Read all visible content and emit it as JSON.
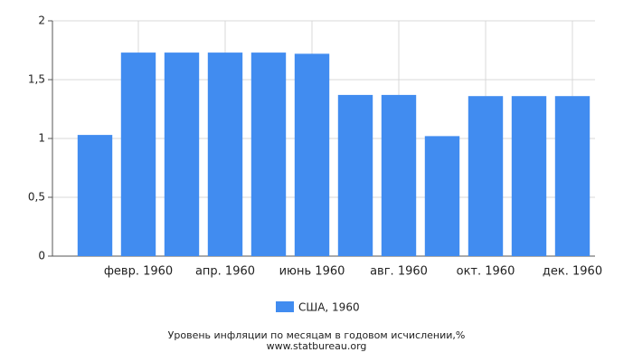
{
  "chart_data": {
    "type": "bar",
    "title": "Уровень инфляции по месяцам в годовом исчислении,%",
    "source": "www.statbureau.org",
    "categories": [
      null,
      "февр. 1960",
      null,
      "апр. 1960",
      null,
      "июнь 1960",
      null,
      "авг. 1960",
      null,
      "окт. 1960",
      null,
      "дек. 1960"
    ],
    "series": [
      {
        "name": "США, 1960",
        "color": "#418cf0",
        "values": [
          1.03,
          1.73,
          1.73,
          1.73,
          1.73,
          1.72,
          1.37,
          1.37,
          1.02,
          1.36,
          1.36,
          1.36
        ]
      }
    ],
    "ylim": [
      0,
      2
    ],
    "yticks": [
      0,
      {
        "value": 0.5,
        "label": "0,5"
      },
      1,
      {
        "value": 1.5,
        "label": "1,5"
      },
      2
    ],
    "grid": true
  }
}
